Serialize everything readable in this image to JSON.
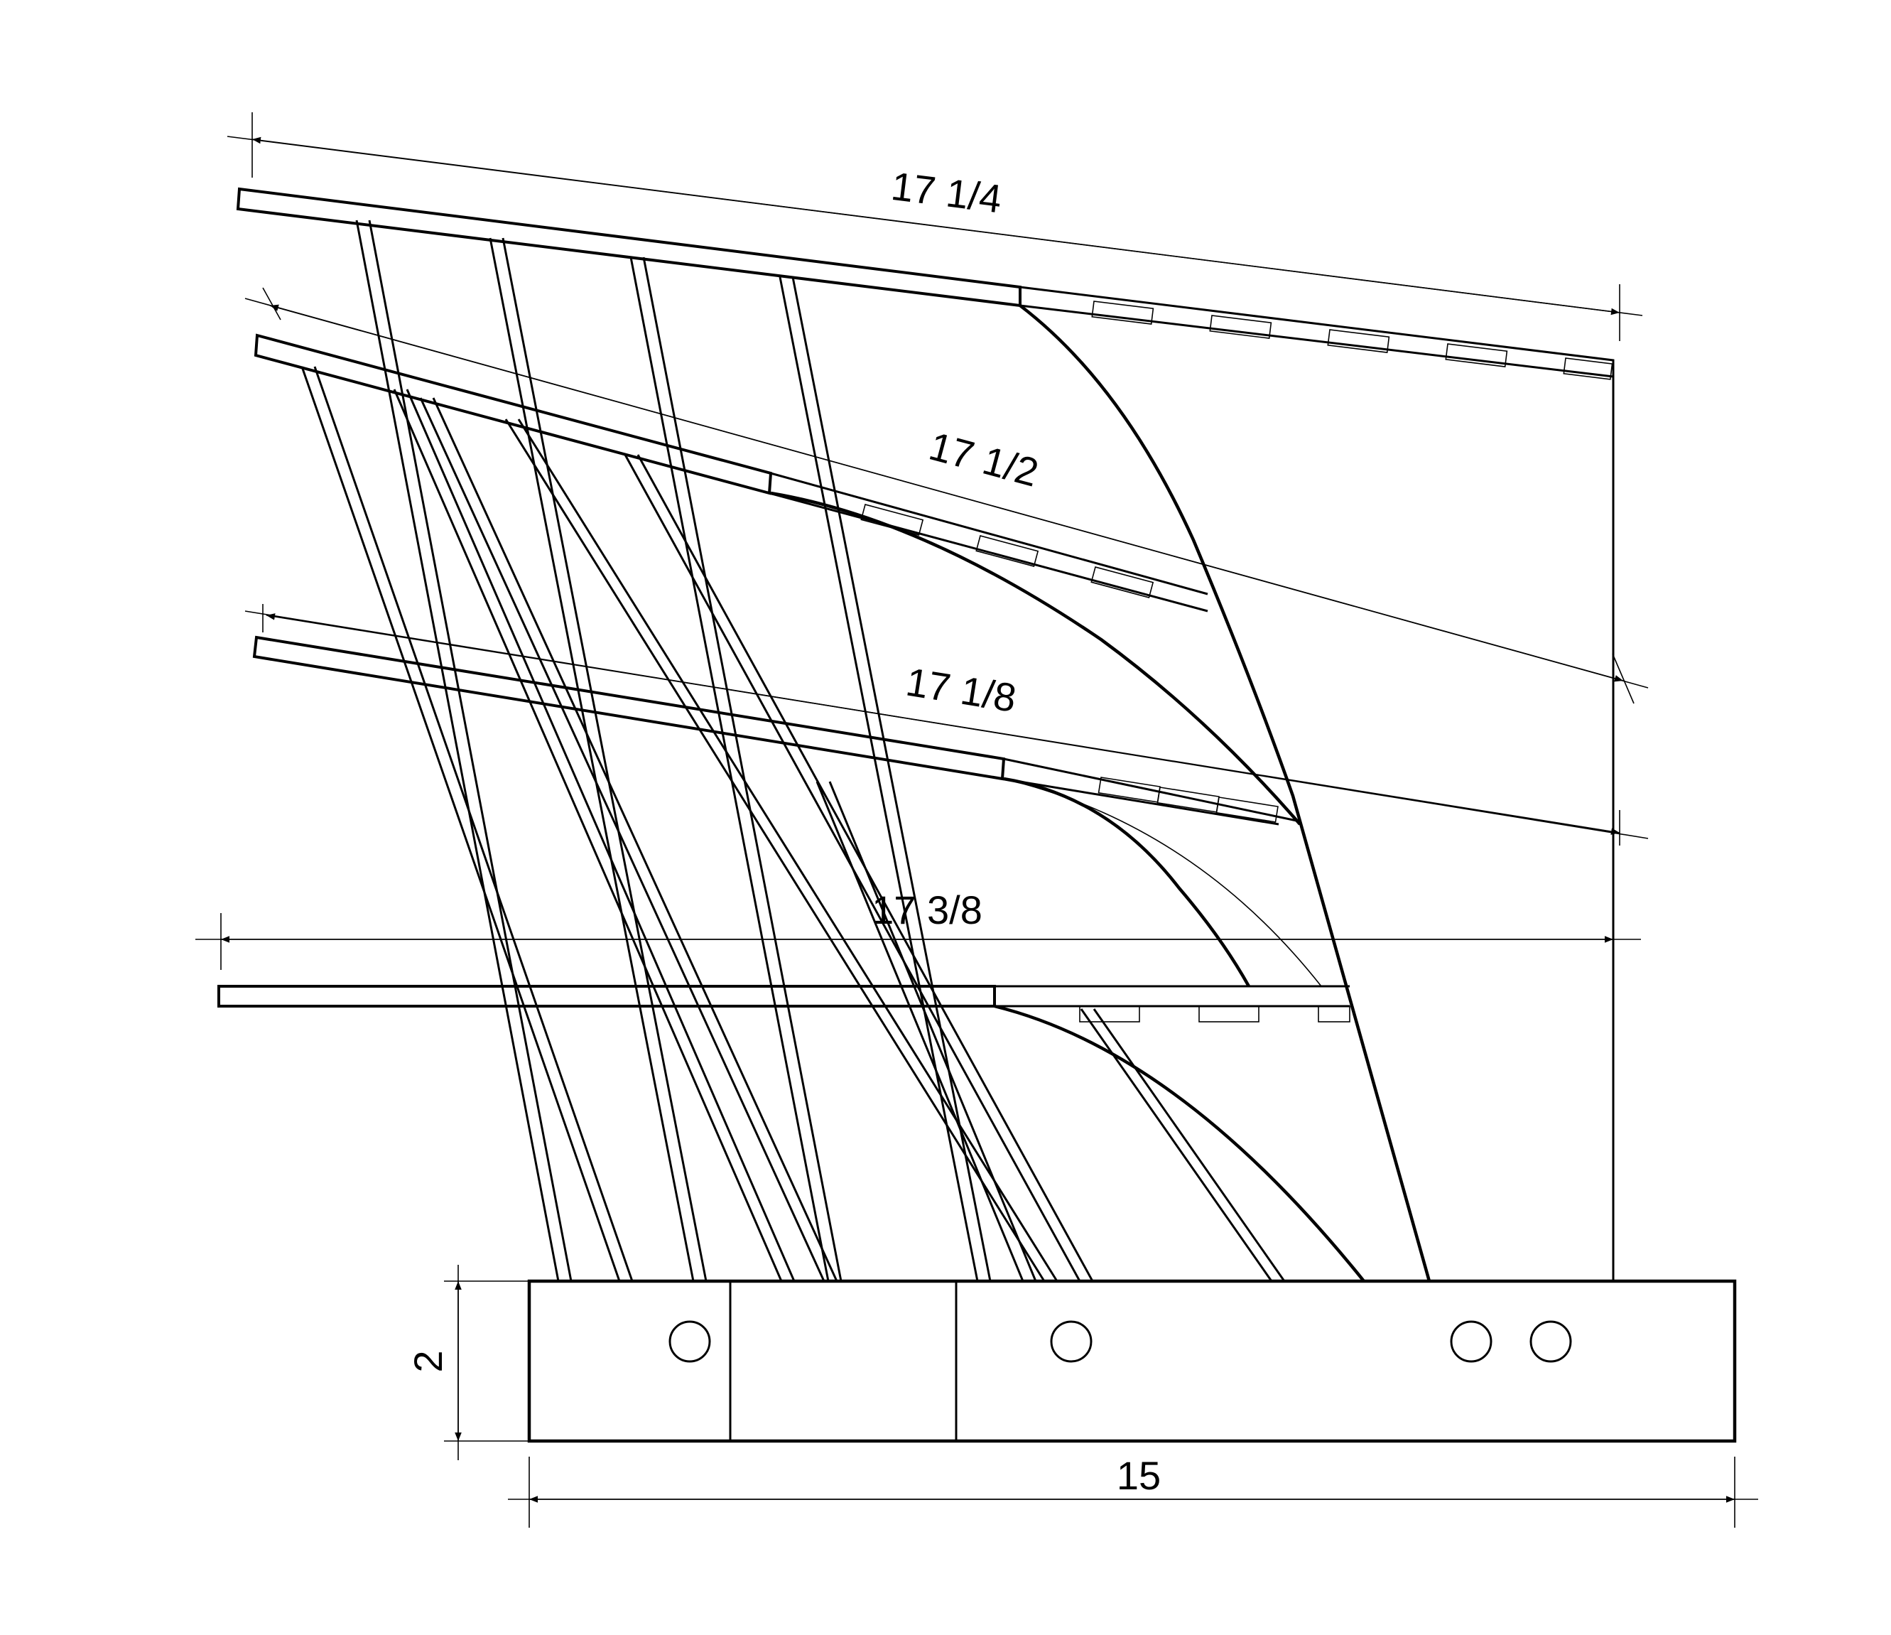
{
  "dimensions": {
    "top_width": "17 1/4",
    "second_width": "17 1/2",
    "third_width": "17 1/8",
    "bottom_width": "17 3/8",
    "base_height": "2",
    "base_width": "15"
  },
  "colors": {
    "line": "#000000",
    "background": "#ffffff"
  }
}
